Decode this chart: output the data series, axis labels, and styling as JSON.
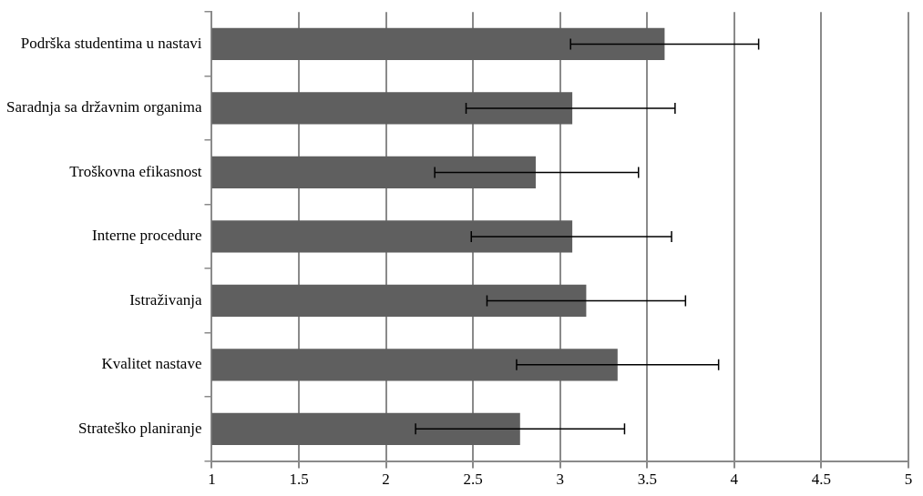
{
  "chart_data": {
    "type": "bar",
    "orientation": "horizontal",
    "categories": [
      "Podrška studentima u nastavi",
      "Saradnja sa državnim organima",
      "Troškovna efikasnost",
      "Interne procedure",
      "Istraživanja",
      "Kvalitet nastave",
      "Strateško planiranje"
    ],
    "values": [
      3.6,
      3.07,
      2.86,
      3.07,
      3.15,
      3.33,
      2.77
    ],
    "errors": [
      [
        3.06,
        4.14
      ],
      [
        2.46,
        3.66
      ],
      [
        2.28,
        3.45
      ],
      [
        2.49,
        3.64
      ],
      [
        2.58,
        3.72
      ],
      [
        2.75,
        3.91
      ],
      [
        2.17,
        3.37
      ]
    ],
    "color": "#5f5f5f",
    "xlim": [
      1,
      5
    ],
    "xticks": [
      1,
      1.5,
      2,
      2.5,
      3,
      3.5,
      4,
      4.5,
      5
    ],
    "grid": "x",
    "legend": false
  }
}
